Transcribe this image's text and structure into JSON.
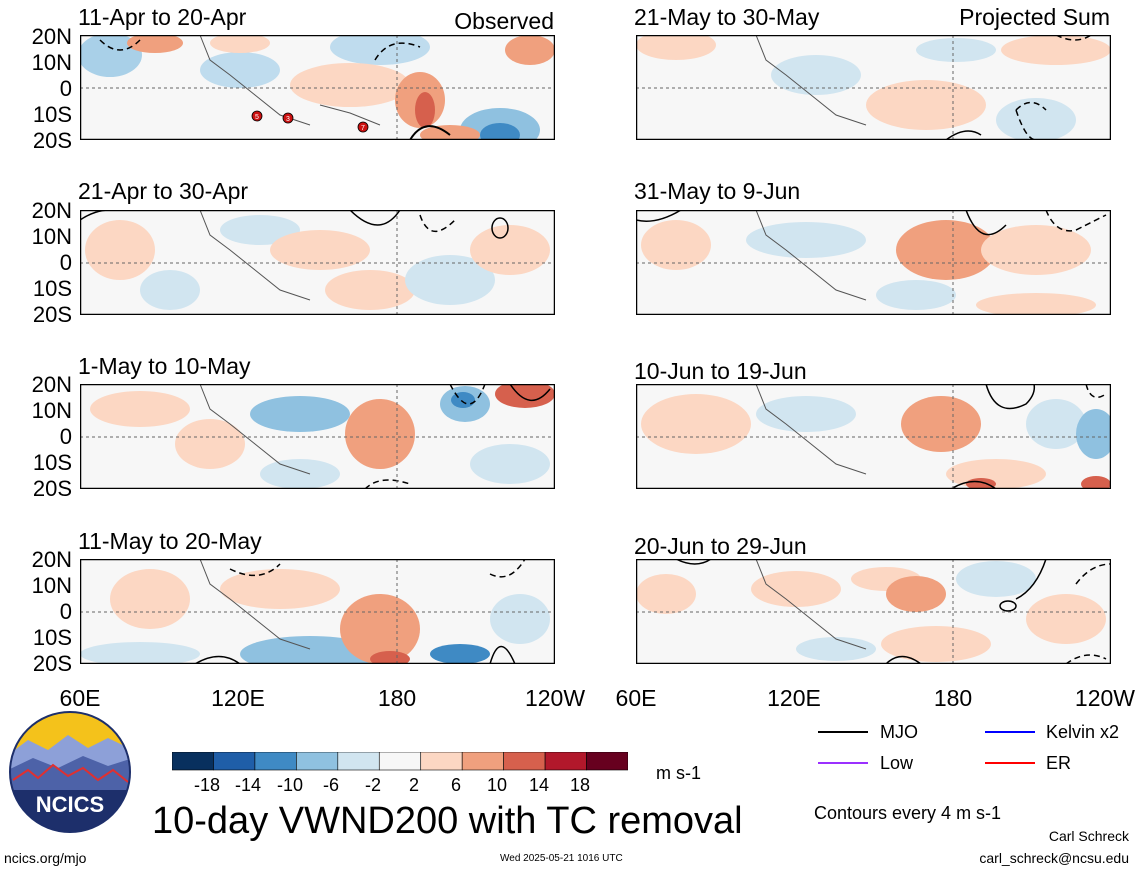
{
  "panels_left": [
    {
      "title": "11-Apr to 20-Apr",
      "tag": "Observed"
    },
    {
      "title": "21-Apr to 30-Apr",
      "tag": ""
    },
    {
      "title": "1-May to 10-May",
      "tag": ""
    },
    {
      "title": "11-May to 20-May",
      "tag": ""
    }
  ],
  "panels_right": [
    {
      "title": "21-May to 30-May",
      "tag": "Projected Sum"
    },
    {
      "title": "31-May to 9-Jun",
      "tag": ""
    },
    {
      "title": "10-Jun to 19-Jun",
      "tag": ""
    },
    {
      "title": "20-Jun to 29-Jun",
      "tag": ""
    }
  ],
  "lat_labels": [
    "20N",
    "10N",
    "0",
    "10S",
    "20S"
  ],
  "lon_labels": [
    "60E",
    "120E",
    "180",
    "120W"
  ],
  "tc_markers": [
    "5",
    "3",
    "7"
  ],
  "colorbar": {
    "ticks": [
      "-18",
      "-14",
      "-10",
      "-6",
      "-2",
      "2",
      "6",
      "10",
      "14",
      "18"
    ],
    "colors": [
      "#08305e",
      "#1f5ea8",
      "#3f8ac4",
      "#8fc1e0",
      "#d1e5f0",
      "#f7f7f7",
      "#fcd7c3",
      "#f0a07e",
      "#d6604d",
      "#b2182b",
      "#67001f"
    ],
    "units": "m s-1"
  },
  "legend": {
    "items": [
      {
        "label": "MJO",
        "color": "#000000"
      },
      {
        "label": "Kelvin x2",
        "color": "#0000ff"
      },
      {
        "label": "Low",
        "color": "#9b30ff"
      },
      {
        "label": "ER",
        "color": "#ff0000"
      }
    ],
    "note": "Contours every 4 m s-1"
  },
  "main_title": "10-day VWND200 with TC removal",
  "logo_text": "NCICS",
  "footer": {
    "site": "ncics.org/mjo",
    "timestamp": "Wed 2025-05-21 1016 UTC",
    "author": "Carl Schreck",
    "email": "carl_schreck@ncsu.edu"
  }
}
